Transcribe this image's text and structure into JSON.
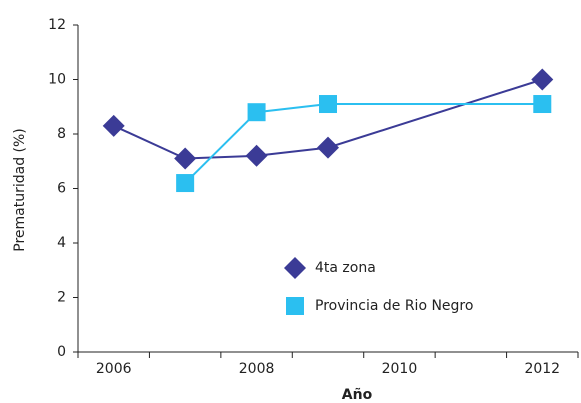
{
  "chart_data": {
    "type": "line",
    "x_label": "Año",
    "y_label": "Prematuridad (%)",
    "series": [
      {
        "name": "4ta zona",
        "color": "#3b3b96",
        "marker": "diamond",
        "x": [
          2006,
          2007,
          2008,
          2009,
          2012
        ],
        "values": [
          8.3,
          7.1,
          7.2,
          7.5,
          10.0
        ]
      },
      {
        "name": "Provincia de Rio Negro",
        "color": "#2bbff0",
        "marker": "square",
        "x": [
          2007,
          2008,
          2009,
          2012
        ],
        "values": [
          6.2,
          8.8,
          9.1,
          9.1
        ]
      }
    ],
    "xlim": [
      2005.5,
      2012.5
    ],
    "xticks": [
      2006,
      2008,
      2010,
      2012
    ],
    "ylim": [
      0,
      12
    ],
    "yticks": [
      0,
      2,
      4,
      6,
      8,
      10,
      12
    ],
    "grid": false,
    "legend": "inside"
  }
}
